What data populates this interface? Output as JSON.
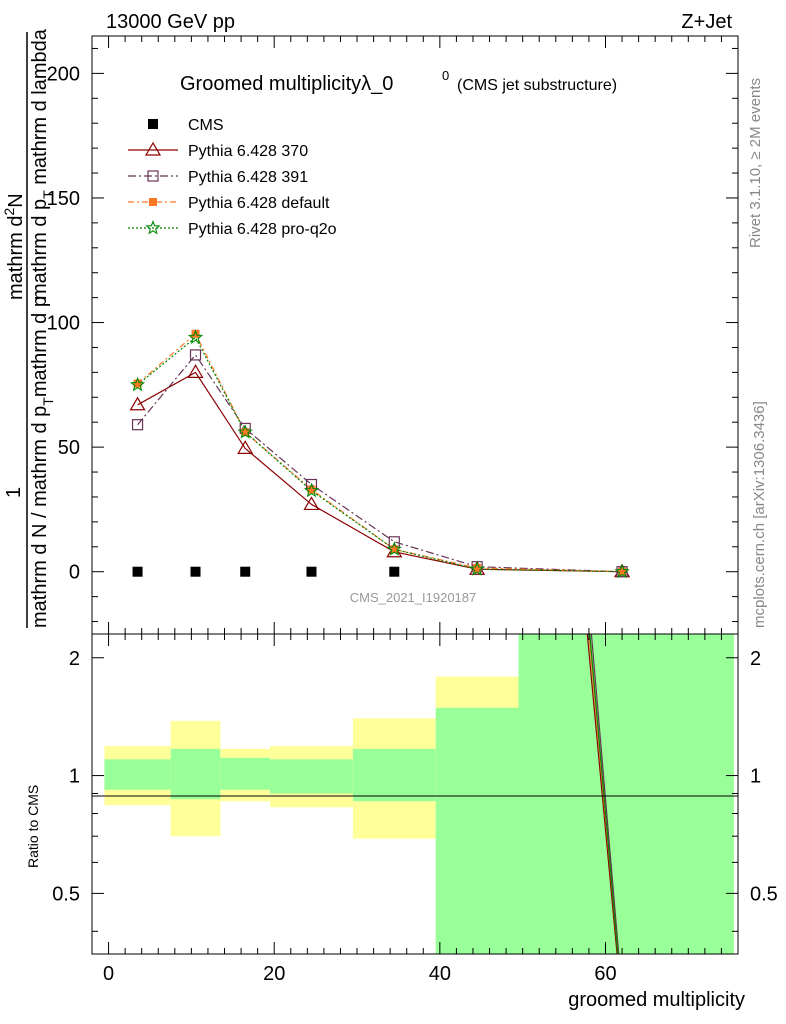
{
  "header": {
    "left": "13000 GeV pp",
    "right": "Z+Jet"
  },
  "side": {
    "upper": "Rivet 3.1.10, ≥ 2M events",
    "lower": "mcplots.cern.ch [arXiv:1306.3436]"
  },
  "chart_data": [
    {
      "type": "line",
      "title": "Groomed multiplicityλ_0",
      "title_sup": "0",
      "subtitle": "(CMS jet substructure)",
      "ylabel_top": "1",
      "ylabel_bottom": "mathrm d N / mathrm d p",
      "ylabel_sub": "T",
      "ylabel_end": "mathrm d p",
      "ylabel_num": "mathrm d",
      "ylabel_num_sup": "2",
      "ylabel_num_end": "N",
      "ylabel_den": "mathrm d p",
      "ylabel_den_sub": "T",
      "ylabel_den_end": " mathrm d lambda",
      "ylim": [
        -25,
        215
      ],
      "xlim": [
        -2,
        76
      ],
      "yticks": [
        0,
        50,
        100,
        150,
        200
      ],
      "watermark": "CMS_2021_I1920187",
      "legend_position": "top-left",
      "series": [
        {
          "name": "CMS",
          "color": "#000000",
          "marker": "square",
          "x": [
            3.5,
            10.5,
            16.5,
            24.5,
            34.5
          ],
          "y": [
            0,
            0,
            0,
            0,
            0
          ]
        },
        {
          "name": "Pythia 6.428 370",
          "color": "#8b0000",
          "marker": "triangle",
          "dash": "",
          "x": [
            3.5,
            10.5,
            16.5,
            24.5,
            34.5,
            44.5,
            62.0
          ],
          "y": [
            67,
            80,
            49.5,
            27,
            8,
            1,
            0
          ]
        },
        {
          "name": "Pythia 6.428 391",
          "color": "#663355",
          "marker": "open-square",
          "dash": "8,3,2,3",
          "x": [
            3.5,
            10.5,
            16.5,
            24.5,
            34.5,
            44.5,
            62.0
          ],
          "y": [
            59,
            87,
            57.5,
            35,
            12,
            2,
            0
          ]
        },
        {
          "name": "Pythia 6.428 default",
          "color": "#ff7722",
          "marker": "filled-square",
          "dash": "6,3,2,3",
          "x": [
            3.5,
            10.5,
            16.5,
            24.5,
            34.5,
            44.5,
            62.0
          ],
          "y": [
            75.5,
            95.5,
            56,
            33,
            9,
            1.5,
            0
          ]
        },
        {
          "name": "Pythia 6.428 pro-q2o",
          "color": "#008800",
          "marker": "star",
          "dash": "2,2",
          "x": [
            3.5,
            10.5,
            16.5,
            24.5,
            34.5,
            44.5,
            62.0
          ],
          "y": [
            75,
            94,
            56,
            32.5,
            9,
            1,
            0
          ]
        }
      ]
    },
    {
      "type": "area",
      "ylabel": "Ratio to CMS",
      "xlabel": "groomed multiplicity",
      "ylim": [
        0.35,
        2.3
      ],
      "xlim": [
        -2,
        76
      ],
      "yscale": "log",
      "yticks": [
        0.5,
        1,
        2
      ],
      "xticks": [
        0,
        20,
        40,
        60
      ],
      "bins": [
        {
          "x": [
            -0.5,
            7.5
          ],
          "green": [
            0.92,
            1.1
          ],
          "yellow": [
            0.84,
            1.19
          ]
        },
        {
          "x": [
            7.5,
            13.5
          ],
          "green": [
            0.87,
            1.17
          ],
          "yellow": [
            0.7,
            1.38
          ]
        },
        {
          "x": [
            13.5,
            19.5
          ],
          "green": [
            0.92,
            1.11
          ],
          "yellow": [
            0.86,
            1.17
          ]
        },
        {
          "x": [
            19.5,
            29.5
          ],
          "green": [
            0.9,
            1.1
          ],
          "yellow": [
            0.83,
            1.19
          ]
        },
        {
          "x": [
            29.5,
            39.5
          ],
          "green": [
            0.86,
            1.17
          ],
          "yellow": [
            0.69,
            1.4
          ]
        },
        {
          "x": [
            39.5,
            49.5
          ],
          "green": [
            0.35,
            1.49
          ],
          "yellow": [
            0.35,
            1.79
          ]
        },
        {
          "x": [
            49.5,
            75.5
          ],
          "green": [
            0.35,
            2.3
          ],
          "yellow": [
            0.35,
            2.3
          ]
        }
      ],
      "ratio_lines": [
        {
          "color": "#8b0000",
          "x": [
            57.8,
            61.4
          ],
          "y": [
            2.3,
            0.35
          ]
        },
        {
          "color": "#663355",
          "x": [
            58.3,
            61.6
          ],
          "y": [
            2.3,
            0.35
          ]
        },
        {
          "color": "#ff7722",
          "x": [
            58.0,
            61.5
          ],
          "y": [
            2.3,
            0.35
          ]
        },
        {
          "color": "#008800",
          "x": [
            58.1,
            61.5
          ],
          "y": [
            2.3,
            0.35
          ]
        }
      ]
    }
  ]
}
